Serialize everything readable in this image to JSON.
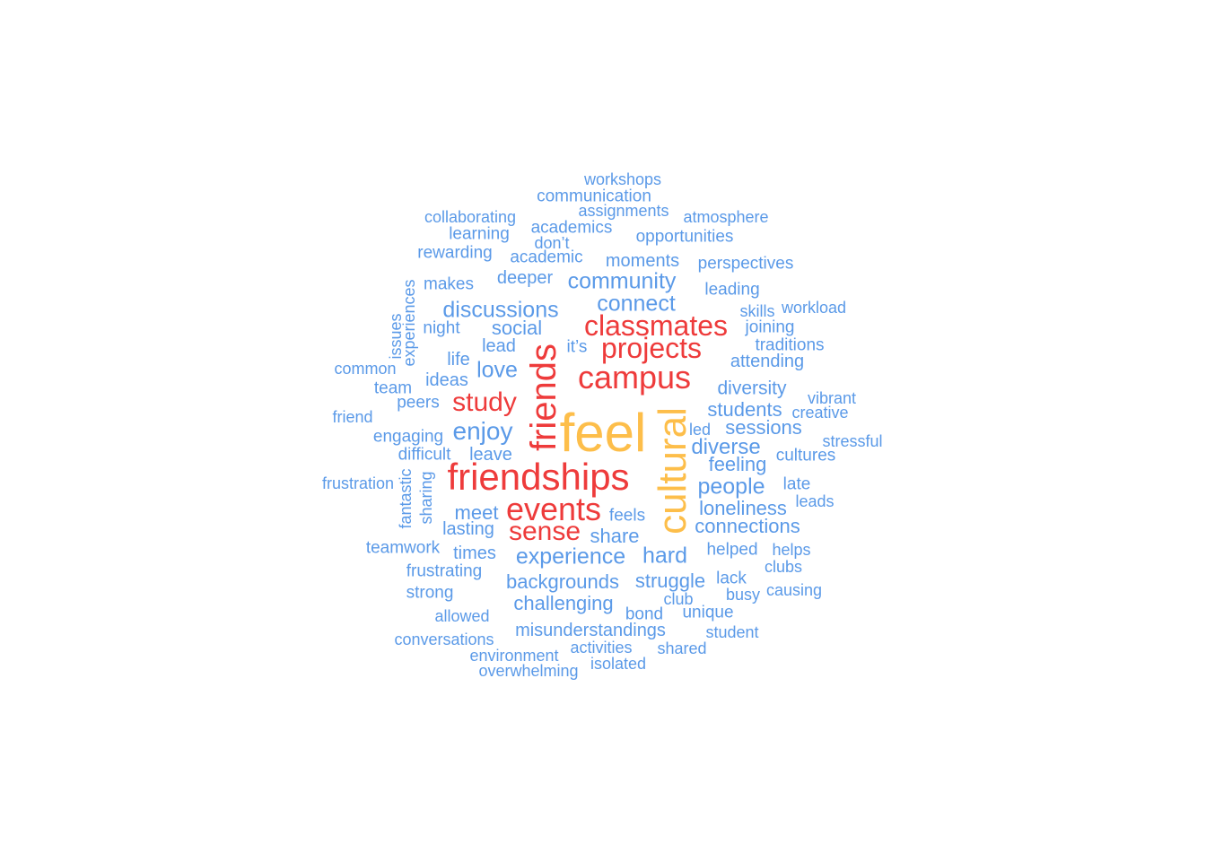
{
  "colors": {
    "high": "#FDBE4A",
    "mid": "#EE3B3B",
    "low": "#5B9AE8"
  },
  "words": [
    {
      "text": "feel",
      "tier": "high",
      "size": 60,
      "rotated": false
    },
    {
      "text": "cultural",
      "tier": "high",
      "size": 44,
      "rotated": true
    },
    {
      "text": "friendships",
      "tier": "mid",
      "size": 42,
      "rotated": false
    },
    {
      "text": "friends",
      "tier": "mid",
      "size": 40,
      "rotated": true
    },
    {
      "text": "campus",
      "tier": "mid",
      "size": 36,
      "rotated": false
    },
    {
      "text": "events",
      "tier": "mid",
      "size": 36,
      "rotated": false
    },
    {
      "text": "classmates",
      "tier": "mid",
      "size": 32,
      "rotated": false
    },
    {
      "text": "projects",
      "tier": "mid",
      "size": 32,
      "rotated": false
    },
    {
      "text": "study",
      "tier": "mid",
      "size": 30,
      "rotated": false
    },
    {
      "text": "sense",
      "tier": "mid",
      "size": 30,
      "rotated": false
    },
    {
      "text": "enjoy",
      "tier": "low",
      "size": 28,
      "rotated": false
    },
    {
      "text": "experience",
      "tier": "low",
      "size": 25,
      "rotated": false
    },
    {
      "text": "discussions",
      "tier": "low",
      "size": 25,
      "rotated": false
    },
    {
      "text": "love",
      "tier": "low",
      "size": 25,
      "rotated": false
    },
    {
      "text": "community",
      "tier": "low",
      "size": 25,
      "rotated": false
    },
    {
      "text": "connect",
      "tier": "low",
      "size": 25,
      "rotated": false
    },
    {
      "text": "people",
      "tier": "low",
      "size": 25,
      "rotated": false
    },
    {
      "text": "hard",
      "tier": "low",
      "size": 25,
      "rotated": false
    },
    {
      "text": "diverse",
      "tier": "low",
      "size": 24,
      "rotated": false
    },
    {
      "text": "social",
      "tier": "low",
      "size": 22,
      "rotated": false
    },
    {
      "text": "backgrounds",
      "tier": "low",
      "size": 22,
      "rotated": false
    },
    {
      "text": "struggle",
      "tier": "low",
      "size": 22,
      "rotated": false
    },
    {
      "text": "connections",
      "tier": "low",
      "size": 22,
      "rotated": false
    },
    {
      "text": "challenging",
      "tier": "low",
      "size": 22,
      "rotated": false
    },
    {
      "text": "students",
      "tier": "low",
      "size": 22,
      "rotated": false
    },
    {
      "text": "loneliness",
      "tier": "low",
      "size": 22,
      "rotated": false
    },
    {
      "text": "sessions",
      "tier": "low",
      "size": 22,
      "rotated": false
    },
    {
      "text": "feeling",
      "tier": "low",
      "size": 22,
      "rotated": false
    },
    {
      "text": "share",
      "tier": "low",
      "size": 22,
      "rotated": false
    },
    {
      "text": "meet",
      "tier": "low",
      "size": 22,
      "rotated": false
    },
    {
      "text": "diversity",
      "tier": "low",
      "size": 21,
      "rotated": false
    },
    {
      "text": "misunderstandings",
      "tier": "low",
      "size": 20,
      "rotated": false
    },
    {
      "text": "lasting",
      "tier": "low",
      "size": 20,
      "rotated": false
    },
    {
      "text": "times",
      "tier": "low",
      "size": 20,
      "rotated": false
    },
    {
      "text": "lead",
      "tier": "low",
      "size": 20,
      "rotated": false
    },
    {
      "text": "deeper",
      "tier": "low",
      "size": 20,
      "rotated": false
    },
    {
      "text": "moments",
      "tier": "low",
      "size": 20,
      "rotated": false
    },
    {
      "text": "attending",
      "tier": "low",
      "size": 20,
      "rotated": false
    },
    {
      "text": "ideas",
      "tier": "low",
      "size": 20,
      "rotated": false
    },
    {
      "text": "life",
      "tier": "low",
      "size": 20,
      "rotated": false
    },
    {
      "text": "leave",
      "tier": "low",
      "size": 20,
      "rotated": false
    },
    {
      "text": "opportunities",
      "tier": "low",
      "size": 19,
      "rotated": false
    },
    {
      "text": "perspectives",
      "tier": "low",
      "size": 19,
      "rotated": false
    },
    {
      "text": "academic",
      "tier": "low",
      "size": 19,
      "rotated": false
    },
    {
      "text": "feels",
      "tier": "low",
      "size": 19,
      "rotated": false
    },
    {
      "text": "helped",
      "tier": "low",
      "size": 19,
      "rotated": false
    },
    {
      "text": "lack",
      "tier": "low",
      "size": 19,
      "rotated": false
    },
    {
      "text": "leading",
      "tier": "low",
      "size": 19,
      "rotated": false
    },
    {
      "text": "joining",
      "tier": "low",
      "size": 19,
      "rotated": false
    },
    {
      "text": "traditions",
      "tier": "low",
      "size": 19,
      "rotated": false
    },
    {
      "text": "night",
      "tier": "low",
      "size": 19,
      "rotated": false
    },
    {
      "text": "makes",
      "tier": "low",
      "size": 19,
      "rotated": false
    },
    {
      "text": "peers",
      "tier": "low",
      "size": 19,
      "rotated": false
    },
    {
      "text": "team",
      "tier": "low",
      "size": 19,
      "rotated": false
    },
    {
      "text": "engaging",
      "tier": "low",
      "size": 19,
      "rotated": false
    },
    {
      "text": "difficult",
      "tier": "low",
      "size": 19,
      "rotated": false
    },
    {
      "text": "cultures",
      "tier": "low",
      "size": 19,
      "rotated": false
    },
    {
      "text": "late",
      "tier": "low",
      "size": 19,
      "rotated": false
    },
    {
      "text": "teamwork",
      "tier": "low",
      "size": 19,
      "rotated": false
    },
    {
      "text": "frustrating",
      "tier": "low",
      "size": 19,
      "rotated": false
    },
    {
      "text": "strong",
      "tier": "low",
      "size": 19,
      "rotated": false
    },
    {
      "text": "unique",
      "tier": "low",
      "size": 19,
      "rotated": false
    },
    {
      "text": "bond",
      "tier": "low",
      "size": 19,
      "rotated": false
    },
    {
      "text": "academics",
      "tier": "low",
      "size": 19,
      "rotated": false
    },
    {
      "text": "communication",
      "tier": "low",
      "size": 19,
      "rotated": false
    },
    {
      "text": "learning",
      "tier": "low",
      "size": 19,
      "rotated": false
    },
    {
      "text": "rewarding",
      "tier": "low",
      "size": 19,
      "rotated": false
    },
    {
      "text": "collaborating",
      "tier": "low",
      "size": 18,
      "rotated": false
    },
    {
      "text": "assignments",
      "tier": "low",
      "size": 18,
      "rotated": false
    },
    {
      "text": "atmosphere",
      "tier": "low",
      "size": 18,
      "rotated": false
    },
    {
      "text": "workshops",
      "tier": "low",
      "size": 18,
      "rotated": false
    },
    {
      "text": "don’t",
      "tier": "low",
      "size": 18,
      "rotated": false
    },
    {
      "text": "it’s",
      "tier": "low",
      "size": 19,
      "rotated": false
    },
    {
      "text": "skills",
      "tier": "low",
      "size": 18,
      "rotated": false
    },
    {
      "text": "workload",
      "tier": "low",
      "size": 18,
      "rotated": false
    },
    {
      "text": "vibrant",
      "tier": "low",
      "size": 18,
      "rotated": false
    },
    {
      "text": "creative",
      "tier": "low",
      "size": 18,
      "rotated": false
    },
    {
      "text": "stressful",
      "tier": "low",
      "size": 18,
      "rotated": false
    },
    {
      "text": "leads",
      "tier": "low",
      "size": 18,
      "rotated": false
    },
    {
      "text": "helps",
      "tier": "low",
      "size": 18,
      "rotated": false
    },
    {
      "text": "clubs",
      "tier": "low",
      "size": 18,
      "rotated": false
    },
    {
      "text": "causing",
      "tier": "low",
      "size": 18,
      "rotated": false
    },
    {
      "text": "busy",
      "tier": "low",
      "size": 18,
      "rotated": false
    },
    {
      "text": "club",
      "tier": "low",
      "size": 18,
      "rotated": false
    },
    {
      "text": "student",
      "tier": "low",
      "size": 18,
      "rotated": false
    },
    {
      "text": "shared",
      "tier": "low",
      "size": 18,
      "rotated": false
    },
    {
      "text": "isolated",
      "tier": "low",
      "size": 18,
      "rotated": false
    },
    {
      "text": "activities",
      "tier": "low",
      "size": 18,
      "rotated": false
    },
    {
      "text": "environment",
      "tier": "low",
      "size": 18,
      "rotated": false
    },
    {
      "text": "overwhelming",
      "tier": "low",
      "size": 18,
      "rotated": false
    },
    {
      "text": "conversations",
      "tier": "low",
      "size": 18,
      "rotated": false
    },
    {
      "text": "allowed",
      "tier": "low",
      "size": 18,
      "rotated": false
    },
    {
      "text": "frustration",
      "tier": "low",
      "size": 18,
      "rotated": false
    },
    {
      "text": "friend",
      "tier": "low",
      "size": 18,
      "rotated": false
    },
    {
      "text": "common",
      "tier": "low",
      "size": 18,
      "rotated": false
    },
    {
      "text": "led",
      "tier": "low",
      "size": 18,
      "rotated": false
    },
    {
      "text": "issues",
      "tier": "low",
      "size": 18,
      "rotated": true
    },
    {
      "text": "experiences",
      "tier": "low",
      "size": 18,
      "rotated": true
    },
    {
      "text": "fantastic",
      "tier": "low",
      "size": 18,
      "rotated": true
    },
    {
      "text": "sharing",
      "tier": "low",
      "size": 18,
      "rotated": true
    }
  ]
}
